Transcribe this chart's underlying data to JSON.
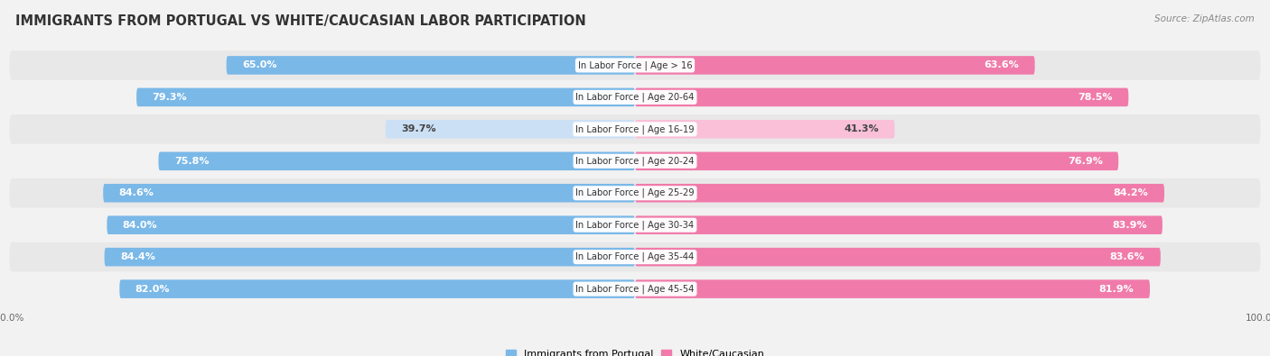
{
  "title": "IMMIGRANTS FROM PORTUGAL VS WHITE/CAUCASIAN LABOR PARTICIPATION",
  "source": "Source: ZipAtlas.com",
  "categories": [
    "In Labor Force | Age > 16",
    "In Labor Force | Age 20-64",
    "In Labor Force | Age 16-19",
    "In Labor Force | Age 20-24",
    "In Labor Force | Age 25-29",
    "In Labor Force | Age 30-34",
    "In Labor Force | Age 35-44",
    "In Labor Force | Age 45-54"
  ],
  "portugal_values": [
    65.0,
    79.3,
    39.7,
    75.8,
    84.6,
    84.0,
    84.4,
    82.0
  ],
  "white_values": [
    63.6,
    78.5,
    41.3,
    76.9,
    84.2,
    83.9,
    83.6,
    81.9
  ],
  "portugal_color_full": "#7ab8e8",
  "portugal_color_light": "#cce0f5",
  "white_color_full": "#f07baa",
  "white_color_light": "#f9c0d8",
  "bar_height": 0.58,
  "background_color": "#f2f2f2",
  "row_bg_even": "#e8e8e8",
  "row_bg_odd": "#f2f2f2",
  "label_font_size": 8.0,
  "title_font_size": 10.5,
  "max_value": 100.0,
  "legend_portugal_color": "#7ab8e8",
  "legend_white_color": "#f07baa",
  "threshold_light": 50
}
